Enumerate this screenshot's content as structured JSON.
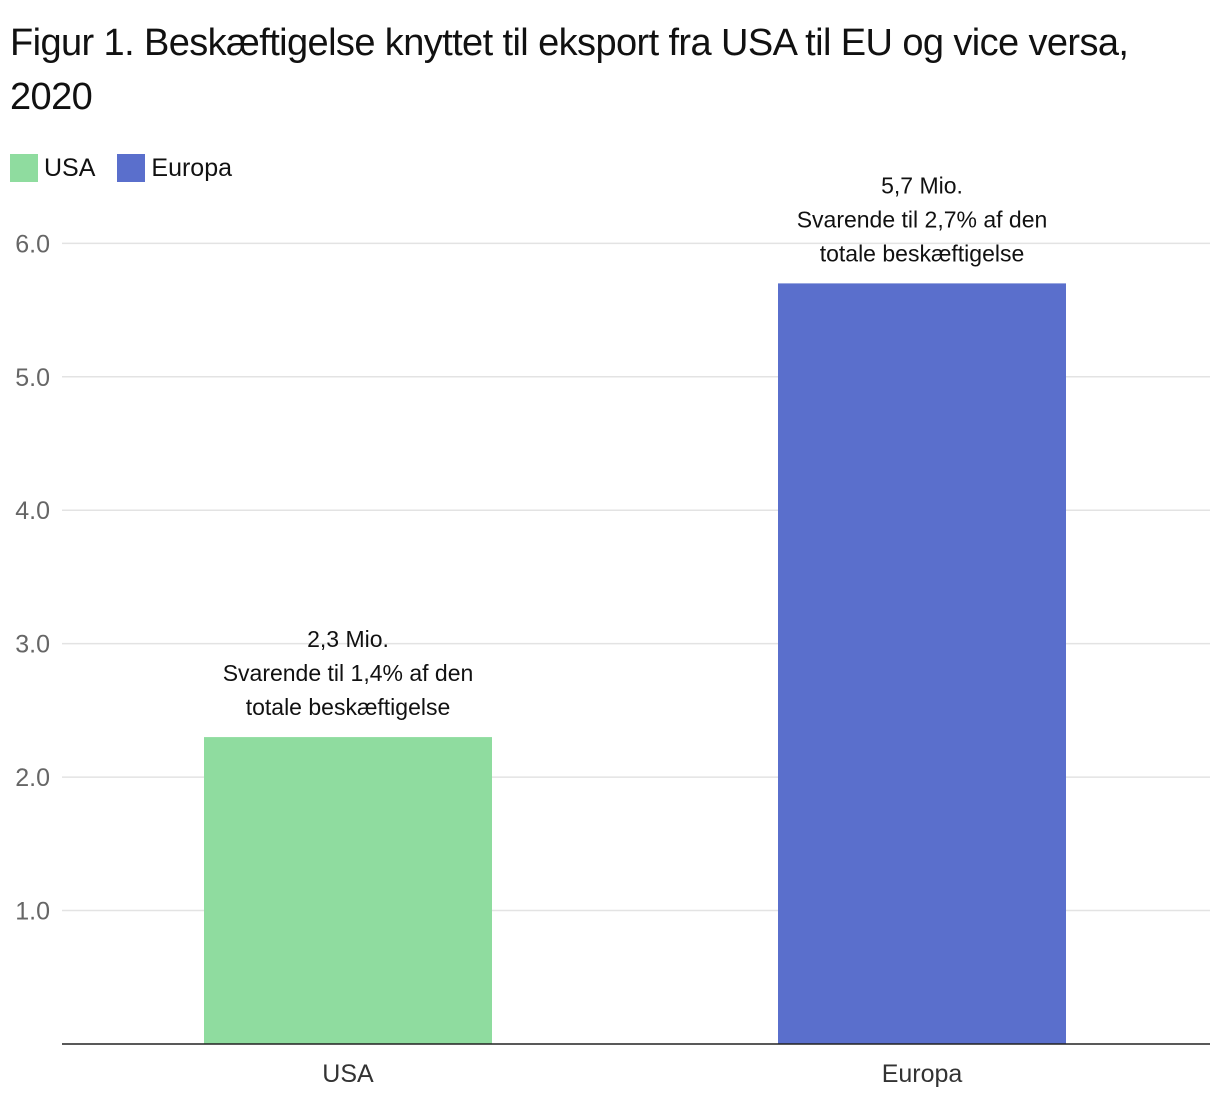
{
  "chart_data": {
    "type": "bar",
    "title": "Figur 1. Beskæftigelse knyttet til eksport fra USA til EU og vice versa, 2020",
    "categories": [
      "USA",
      "Europa"
    ],
    "values": [
      2.3,
      5.7
    ],
    "colors": [
      "#8fdc9f",
      "#5a6fcc"
    ],
    "legend": [
      {
        "label": "USA",
        "color": "#8fdc9f"
      },
      {
        "label": "Europa",
        "color": "#5a6fcc"
      }
    ],
    "legend_position": "top-left",
    "y_ticks": [
      "1.0",
      "2.0",
      "3.0",
      "4.0",
      "5.0",
      "6.0"
    ],
    "ylim": [
      0,
      6.25
    ],
    "grid": true,
    "xlabel": "",
    "ylabel": "",
    "annotations": [
      [
        "2,3 Mio.",
        "Svarende til 1,4% af den",
        "totale beskæftigelse"
      ],
      [
        "5,7 Mio.",
        "Svarende til 2,7% af den",
        "totale beskæftigelse"
      ]
    ]
  }
}
